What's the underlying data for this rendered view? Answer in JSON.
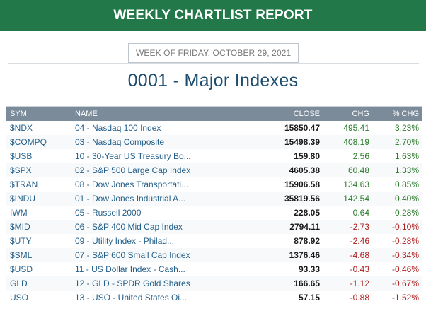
{
  "header": {
    "title": "WEEKLY CHARTLIST REPORT"
  },
  "week_label": "WEEK OF FRIDAY, OCTOBER 29, 2021",
  "list_title": "0001 - Major Indexes",
  "colors": {
    "header_bg": "#23784a",
    "up": "#2a7a2a",
    "down": "#b02020",
    "link": "#235f8a"
  },
  "table": {
    "columns": {
      "sym": "SYM",
      "name": "NAME",
      "close": "CLOSE",
      "chg": "CHG",
      "pct": "% CHG"
    },
    "rows": [
      {
        "sym": "$NDX",
        "name": "04 - Nasdaq 100 Index",
        "close": "15850.47",
        "chg": "495.41",
        "pct": "3.23%",
        "dir": "up"
      },
      {
        "sym": "$COMPQ",
        "name": "03 - Nasdaq Composite",
        "close": "15498.39",
        "chg": "408.19",
        "pct": "2.70%",
        "dir": "up"
      },
      {
        "sym": "$USB",
        "name": "10 - 30-Year US Treasury Bo...",
        "close": "159.80",
        "chg": "2.56",
        "pct": "1.63%",
        "dir": "up"
      },
      {
        "sym": "$SPX",
        "name": "02 - S&P 500 Large Cap Index",
        "close": "4605.38",
        "chg": "60.48",
        "pct": "1.33%",
        "dir": "up"
      },
      {
        "sym": "$TRAN",
        "name": "08 - Dow Jones Transportati...",
        "close": "15906.58",
        "chg": "134.63",
        "pct": "0.85%",
        "dir": "up"
      },
      {
        "sym": "$INDU",
        "name": "01 - Dow Jones Industrial A...",
        "close": "35819.56",
        "chg": "142.54",
        "pct": "0.40%",
        "dir": "up"
      },
      {
        "sym": "IWM",
        "name": "05 - Russell 2000",
        "close": "228.05",
        "chg": "0.64",
        "pct": "0.28%",
        "dir": "up"
      },
      {
        "sym": "$MID",
        "name": "06 - S&P 400 Mid Cap Index",
        "close": "2794.11",
        "chg": "-2.73",
        "pct": "-0.10%",
        "dir": "down"
      },
      {
        "sym": "$UTY",
        "name": "09 - Utility Index - Philad...",
        "close": "878.92",
        "chg": "-2.46",
        "pct": "-0.28%",
        "dir": "down"
      },
      {
        "sym": "$SML",
        "name": "07 - S&P 600 Small Cap Index",
        "close": "1376.46",
        "chg": "-4.68",
        "pct": "-0.34%",
        "dir": "down"
      },
      {
        "sym": "$USD",
        "name": "11 - US Dollar Index - Cash...",
        "close": "93.33",
        "chg": "-0.43",
        "pct": "-0.46%",
        "dir": "down"
      },
      {
        "sym": "GLD",
        "name": "12 - GLD - SPDR Gold Shares",
        "close": "166.65",
        "chg": "-1.12",
        "pct": "-0.67%",
        "dir": "down"
      },
      {
        "sym": "USO",
        "name": "13 - USO - United States Oi...",
        "close": "57.15",
        "chg": "-0.88",
        "pct": "-1.52%",
        "dir": "down"
      }
    ]
  }
}
